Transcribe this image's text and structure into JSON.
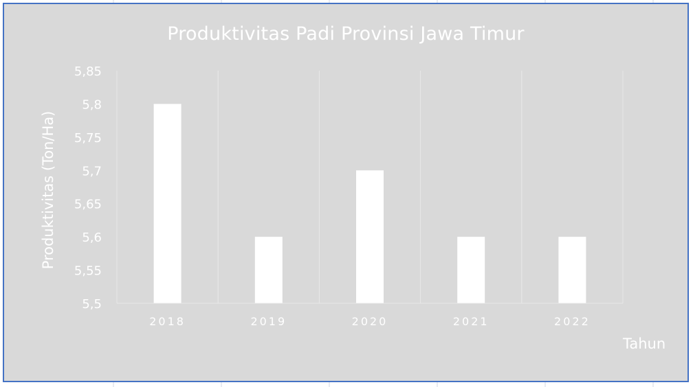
{
  "chart_data": {
    "type": "bar",
    "title": "Produktivitas Padi Provinsi Jawa Timur",
    "xlabel": "Tahun",
    "ylabel": "Produktivitas (Ton/Ha)",
    "categories": [
      "2018",
      "2019",
      "2020",
      "2021",
      "2022"
    ],
    "values": [
      5.8,
      5.6,
      5.7,
      5.6,
      5.6
    ],
    "ylim": [
      5.5,
      5.85
    ],
    "yticks": [
      "5,5",
      "5,55",
      "5,6",
      "5,65",
      "5,7",
      "5,75",
      "5,8",
      "5,85"
    ],
    "grid": "vertical",
    "colors": {
      "bar": "#ffffff",
      "background": "#d9d9d9",
      "border": "#4472c4",
      "gridline": "#e8e8e8",
      "text": "#ffffff"
    }
  }
}
